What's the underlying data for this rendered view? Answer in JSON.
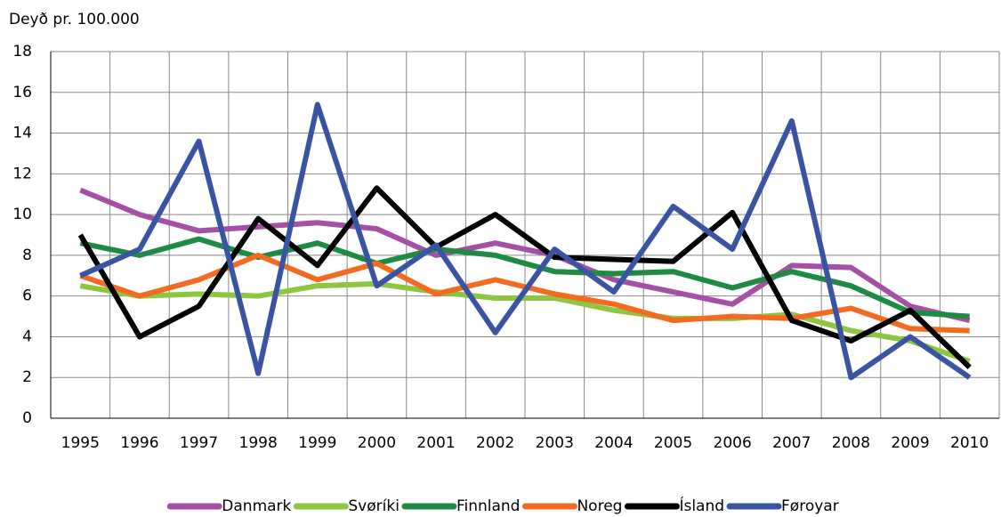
{
  "chart_data": {
    "type": "line",
    "y_label": "Deyð pr. 100.000",
    "categories": [
      "1995",
      "1996",
      "1997",
      "1998",
      "1999",
      "2000",
      "2001",
      "2002",
      "2003",
      "2004",
      "2005",
      "2006",
      "2007",
      "2008",
      "2009",
      "2010"
    ],
    "series": [
      {
        "name": "Danmark",
        "color": "#a550a7",
        "values": [
          11.2,
          10.0,
          9.2,
          9.4,
          9.6,
          9.3,
          8.0,
          8.6,
          8.0,
          6.8,
          6.2,
          5.6,
          7.5,
          7.4,
          5.5,
          4.8
        ]
      },
      {
        "name": "Svøríki",
        "color": "#8dc63f",
        "values": [
          6.5,
          6.0,
          6.1,
          6.0,
          6.5,
          6.6,
          6.2,
          5.9,
          5.9,
          5.3,
          4.9,
          4.9,
          5.1,
          4.3,
          3.8,
          2.8
        ]
      },
      {
        "name": "Finnland",
        "color": "#1e8a44",
        "values": [
          8.6,
          8.0,
          8.8,
          7.9,
          8.6,
          7.6,
          8.3,
          8.0,
          7.2,
          7.1,
          7.2,
          6.4,
          7.2,
          6.5,
          5.2,
          5.0
        ]
      },
      {
        "name": "Noreg",
        "color": "#f26b21",
        "values": [
          7.0,
          6.0,
          6.8,
          8.0,
          6.8,
          7.6,
          6.1,
          6.8,
          6.1,
          5.6,
          4.8,
          5.0,
          4.9,
          5.4,
          4.4,
          4.3
        ]
      },
      {
        "name": "Ísland",
        "color": "#000000",
        "values": [
          9.0,
          4.0,
          5.5,
          9.8,
          7.5,
          11.3,
          8.4,
          10.0,
          7.9,
          7.8,
          7.7,
          10.1,
          4.8,
          3.8,
          5.3,
          2.5
        ]
      },
      {
        "name": "Føroyar",
        "color": "#3a54a4",
        "values": [
          7.0,
          8.3,
          13.6,
          2.2,
          15.4,
          6.5,
          8.5,
          4.2,
          8.3,
          6.2,
          10.4,
          8.3,
          14.6,
          2.0,
          4.0,
          2.0
        ]
      }
    ],
    "ylim": [
      0,
      18
    ],
    "yticks": [
      0,
      2,
      4,
      6,
      8,
      10,
      12,
      14,
      16,
      18
    ],
    "grid": true,
    "legend": "bottom"
  }
}
